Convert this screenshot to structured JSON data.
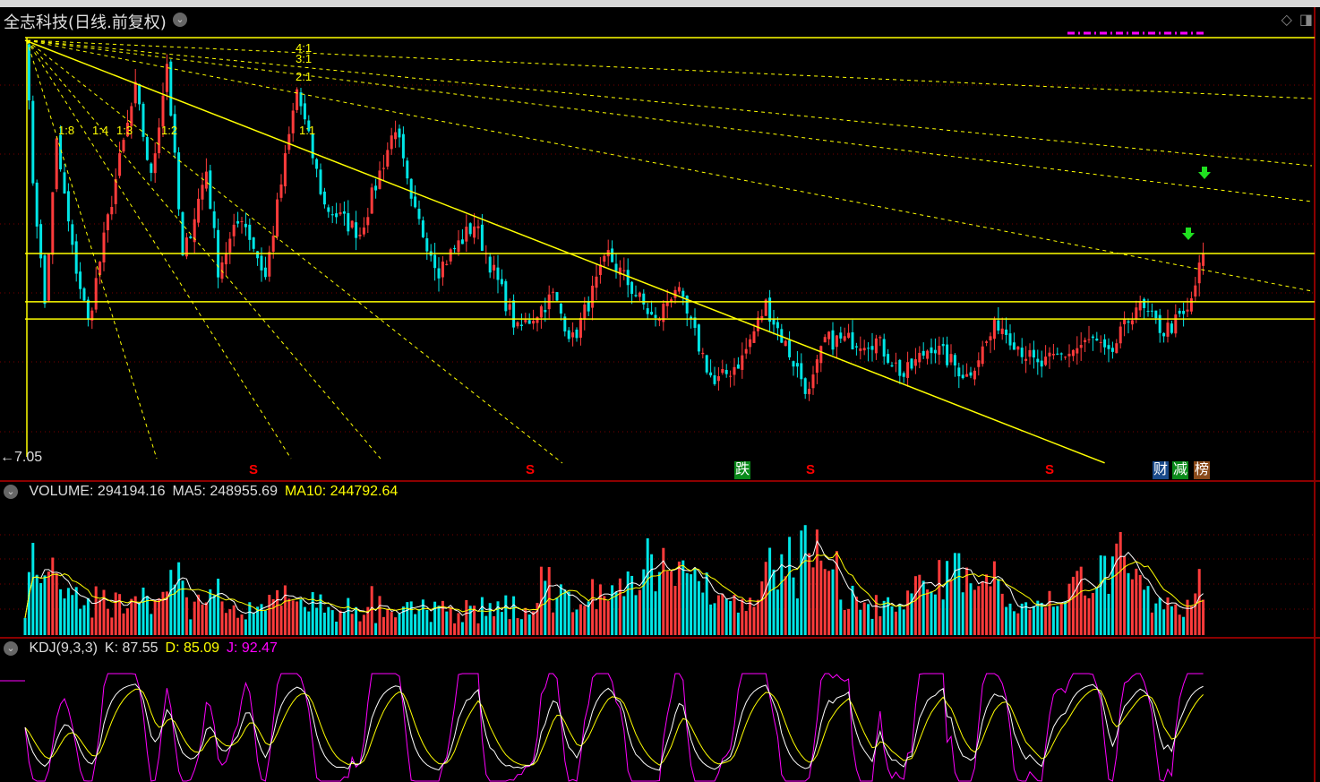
{
  "title": "全志科技(日线.前复权)",
  "price_axis_label": "7.05",
  "gann_labels": [
    "4:1",
    "3:1",
    "2:1",
    "1:1",
    "1:2",
    "1:3",
    "1:4",
    "1:8"
  ],
  "volume": {
    "label": "VOLUME: 294194.16",
    "ma5": "MA5: 248955.69",
    "ma10": "MA10: 244792.64"
  },
  "kdj": {
    "label": "KDJ(9,3,3)",
    "k": "K: 87.55",
    "d": "D: 85.09",
    "j": "J: 92.47"
  },
  "markers": {
    "s": "S",
    "die": "跌",
    "cai": "财",
    "jian": "减",
    "bang": "榜"
  },
  "colors": {
    "up": "#ff3b3b",
    "down": "#00e5e5",
    "line": "#ffff00",
    "magenta": "#ff00ff",
    "divider": "#8b0000"
  },
  "chart_data": {
    "type": "candlestick",
    "price_range": [
      7.05,
      18.0
    ],
    "close_keypoints": {
      "index": [
        0,
        2,
        5,
        8,
        12,
        16,
        23,
        28,
        32,
        36,
        40,
        46,
        49,
        55,
        61,
        69,
        76,
        85,
        94,
        98,
        105,
        114,
        125,
        134,
        139,
        148,
        160,
        165,
        175,
        182,
        188,
        199,
        203,
        216,
        223,
        230,
        239,
        247,
        257,
        271,
        275,
        282,
        289,
        295,
        299
      ],
      "price": [
        18.0,
        14.3,
        11.03,
        15.24,
        12.43,
        10.56,
        14.3,
        16.64,
        14.3,
        17.35,
        12.2,
        14.54,
        11.96,
        13.37,
        11.73,
        16.64,
        13.6,
        12.9,
        15.71,
        13.6,
        11.96,
        13.13,
        10.33,
        11.26,
        10.09,
        12.32,
        10.56,
        11.5,
        8.92,
        9.62,
        11.03,
        8.69,
        10.09,
        10.09,
        9.16,
        9.98,
        9.16,
        10.56,
        9.39,
        10.09,
        9.62,
        11.03,
        10.33,
        10.79,
        12.32
      ]
    },
    "horizontal_lines": [
      18.0,
      12.36,
      11.1,
      10.65
    ],
    "trendline": {
      "from": [
        0,
        17.93
      ],
      "to": [
        274,
        6.89
      ]
    }
  }
}
